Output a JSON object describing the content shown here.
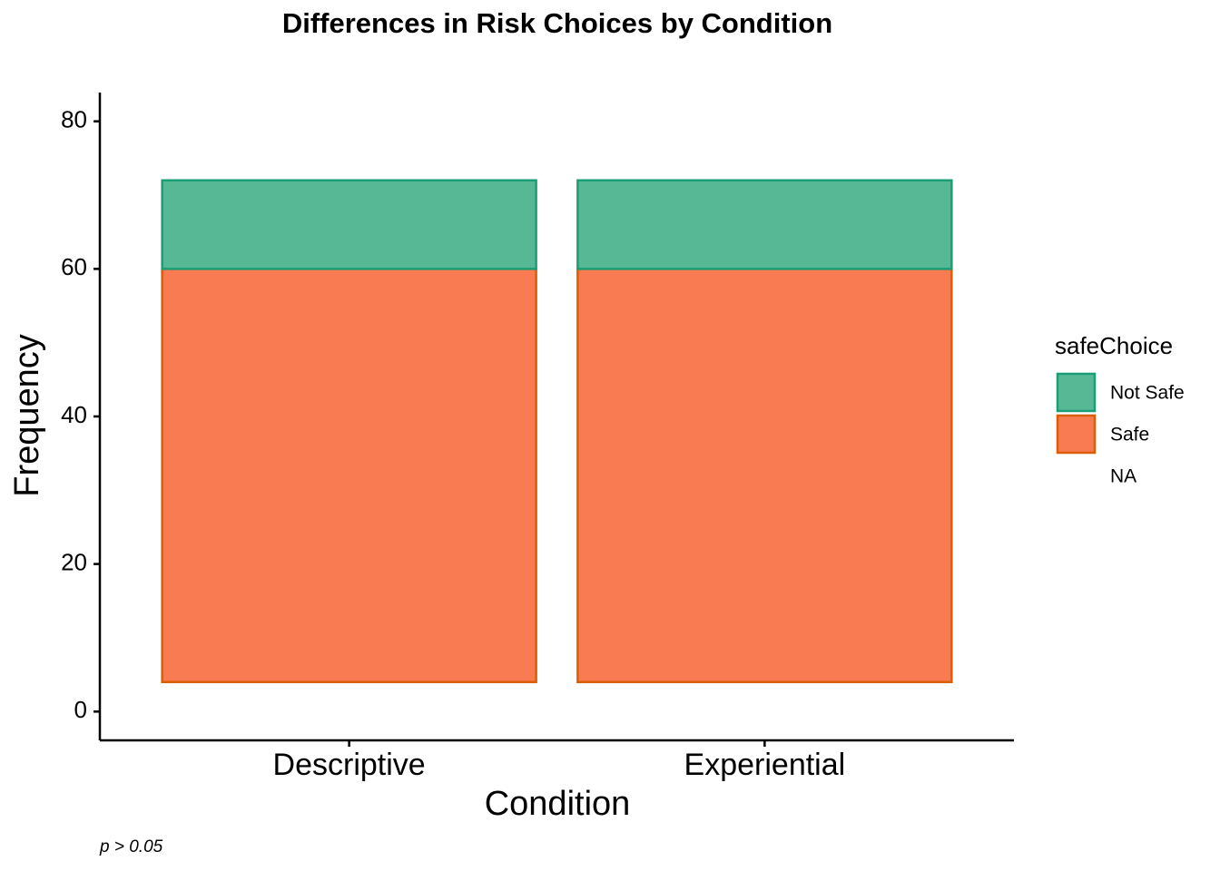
{
  "chart_data": {
    "type": "stacked-bar",
    "title": "Differences in Risk Choices by Condition",
    "x_label": "Condition",
    "y_label": "Frequency",
    "caption": "p > 0.05",
    "legend_title": "safeChoice",
    "legend_position": "right",
    "categories": [
      "Descriptive",
      "Experiential"
    ],
    "series": [
      {
        "name": "Not Safe",
        "color": "#56b894",
        "border": "#1b9e77",
        "values": [
          12,
          12
        ]
      },
      {
        "name": "Safe",
        "color": "#f87b51",
        "border": "#d95f02",
        "values": [
          56,
          56
        ]
      },
      {
        "name": "NA",
        "color": null,
        "border": null,
        "values": [
          4,
          4
        ]
      }
    ],
    "ylim": [
      -3.9,
      83.9
    ],
    "yticks": [
      0,
      20,
      40,
      60,
      80
    ],
    "grid": false
  }
}
